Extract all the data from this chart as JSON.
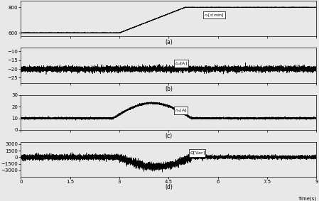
{
  "xlim": [
    0,
    9
  ],
  "xticks": [
    0,
    1.5,
    3,
    4.5,
    6,
    7.5,
    9
  ],
  "panel_a": {
    "yticks": [
      600,
      800
    ],
    "ylim": [
      575,
      850
    ],
    "label": "n_r[r/min]",
    "xlabel": "(a)"
  },
  "panel_b": {
    "ylim": [
      -28,
      -8
    ],
    "yticks": [
      -25,
      -20,
      -15,
      -10
    ],
    "label": "i_{2d}[A]",
    "xlabel": "(b)",
    "mean_val": -20
  },
  "panel_c": {
    "ylim": [
      0,
      30
    ],
    "yticks": [
      0,
      10,
      20,
      30
    ],
    "label": "i_{1s}[A]",
    "xlabel": "(c)"
  },
  "panel_d": {
    "ylim": [
      -4500,
      3500
    ],
    "yticks": [
      -3000,
      -1500,
      0,
      1500,
      3000
    ],
    "label": "Q[Var]",
    "xlabel": "(d)"
  },
  "line_color": "#000000",
  "figsize": [
    4.49,
    2.83
  ],
  "dpi": 100
}
